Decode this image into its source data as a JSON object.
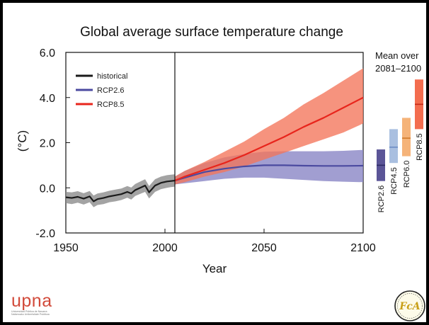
{
  "chart_data": {
    "type": "line",
    "title": "Global average surface temperature change",
    "xlabel": "Year",
    "ylabel": "(°C)",
    "xlim": [
      1950,
      2100
    ],
    "ylim": [
      -2.0,
      6.0
    ],
    "x_ticks": [
      1950,
      2000,
      2050,
      2100
    ],
    "y_ticks": [
      -2.0,
      0.0,
      2.0,
      4.0,
      6.0
    ],
    "y_tick_labels": [
      "-2.0",
      "0.0",
      "2.0",
      "4.0",
      "6.0"
    ],
    "divider_year": 2005,
    "legend": {
      "placement": "top-left",
      "entries": [
        "historical",
        "RCP2.6",
        "RCP8.5"
      ]
    },
    "series": [
      {
        "name": "historical",
        "color": "#1a1a1a",
        "band_color": "#8c8c8c",
        "x": [
          1950,
          1953,
          1956,
          1959,
          1962,
          1964,
          1966,
          1969,
          1972,
          1975,
          1978,
          1981,
          1983,
          1985,
          1988,
          1990,
          1992,
          1995,
          1998,
          2001,
          2003,
          2005
        ],
        "y": [
          -0.42,
          -0.45,
          -0.4,
          -0.48,
          -0.38,
          -0.6,
          -0.5,
          -0.45,
          -0.38,
          -0.33,
          -0.28,
          -0.18,
          -0.25,
          -0.1,
          0.02,
          0.1,
          -0.2,
          0.1,
          0.22,
          0.28,
          0.3,
          0.32
        ],
        "upper": [
          -0.18,
          -0.2,
          -0.15,
          -0.24,
          -0.14,
          -0.34,
          -0.25,
          -0.2,
          -0.13,
          -0.08,
          -0.03,
          0.08,
          0.01,
          0.17,
          0.3,
          0.38,
          0.08,
          0.38,
          0.5,
          0.56,
          0.58,
          0.6
        ],
        "lower": [
          -0.68,
          -0.72,
          -0.66,
          -0.74,
          -0.64,
          -0.86,
          -0.76,
          -0.72,
          -0.64,
          -0.6,
          -0.54,
          -0.44,
          -0.52,
          -0.36,
          -0.25,
          -0.18,
          -0.47,
          -0.18,
          -0.06,
          0.0,
          0.03,
          0.05
        ]
      },
      {
        "name": "RCP2.6",
        "color": "#4b4aa0",
        "band_color": "#8a86c6",
        "x": [
          2005,
          2010,
          2020,
          2030,
          2040,
          2050,
          2060,
          2070,
          2080,
          2090,
          2100
        ],
        "y": [
          0.32,
          0.45,
          0.7,
          0.85,
          0.95,
          1.0,
          1.0,
          0.98,
          0.97,
          0.97,
          0.98
        ],
        "upper": [
          0.5,
          0.75,
          1.1,
          1.35,
          1.5,
          1.6,
          1.62,
          1.62,
          1.62,
          1.64,
          1.68
        ],
        "lower": [
          0.15,
          0.2,
          0.3,
          0.4,
          0.45,
          0.45,
          0.4,
          0.35,
          0.3,
          0.27,
          0.25
        ]
      },
      {
        "name": "RCP8.5",
        "color": "#e8251c",
        "band_color": "#f3745a",
        "x": [
          2005,
          2010,
          2020,
          2030,
          2040,
          2050,
          2060,
          2070,
          2080,
          2090,
          2100
        ],
        "y": [
          0.32,
          0.5,
          0.8,
          1.1,
          1.45,
          1.85,
          2.25,
          2.7,
          3.1,
          3.55,
          4.0
        ],
        "upper": [
          0.5,
          0.75,
          1.15,
          1.6,
          2.05,
          2.6,
          3.1,
          3.7,
          4.2,
          4.75,
          5.3
        ],
        "lower": [
          0.15,
          0.25,
          0.5,
          0.7,
          0.95,
          1.25,
          1.55,
          1.85,
          2.15,
          2.45,
          2.85
        ]
      }
    ],
    "mean_over": {
      "title_line1": "Mean over",
      "title_line2": "2081–2100",
      "bars": [
        {
          "name": "RCP2.6",
          "color": "#5b5597",
          "low": 0.3,
          "high": 1.7,
          "mean": 1.0
        },
        {
          "name": "RCP4.5",
          "color": "#a9bfe0",
          "low": 1.1,
          "high": 2.6,
          "mean": 1.8
        },
        {
          "name": "RCP6.0",
          "color": "#f5b379",
          "low": 1.4,
          "high": 3.1,
          "mean": 2.2
        },
        {
          "name": "RCP8.5",
          "color": "#f36d4f",
          "low": 2.6,
          "high": 4.8,
          "mean": 3.7
        }
      ]
    }
  },
  "logos": {
    "upna_word": "upna",
    "upna_sub1": "Universidad Pública de Navarra",
    "upna_sub2": "Nafarroako Unibertsitate Publikoa",
    "seal_letters": "FcA"
  }
}
